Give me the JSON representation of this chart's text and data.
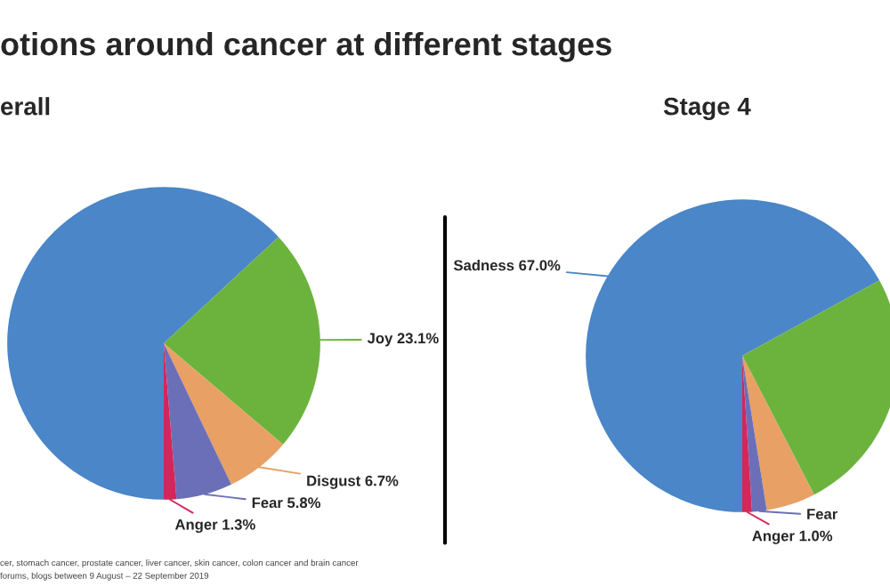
{
  "chart_data": [
    {
      "type": "pie",
      "title": "otions around cancer at different stages",
      "subtitle": "erall",
      "categories": [
        null,
        "Joy",
        "Disgust",
        "Fear",
        "Anger"
      ],
      "values": [
        63.1,
        23.1,
        6.7,
        5.8,
        1.3
      ],
      "value_labels": [
        null,
        "23.1%",
        "6.7%",
        "5.8%",
        "1.3%"
      ],
      "colors": [
        "#4a86c8",
        "#6cb33e",
        "#e8a064",
        "#6b6fb8",
        "#d4265a"
      ],
      "annotations": [
        "cer, stomach cancer, prostate cancer, liver cancer, skin cancer, colon cancer and brain cancer",
        "forums, blogs between 9 August – 22 September 2019"
      ]
    },
    {
      "type": "pie",
      "subtitle": "Stage 4",
      "categories": [
        "Sadness",
        null,
        null,
        "Fear",
        "Anger"
      ],
      "values": [
        67.0,
        25.4,
        5.1,
        1.5,
        1.0
      ],
      "value_labels": [
        "67.0%",
        null,
        null,
        null,
        "1.0%"
      ],
      "colors": [
        "#4a86c8",
        "#6cb33e",
        "#e8a064",
        "#6b6fb8",
        "#d4265a"
      ]
    }
  ]
}
